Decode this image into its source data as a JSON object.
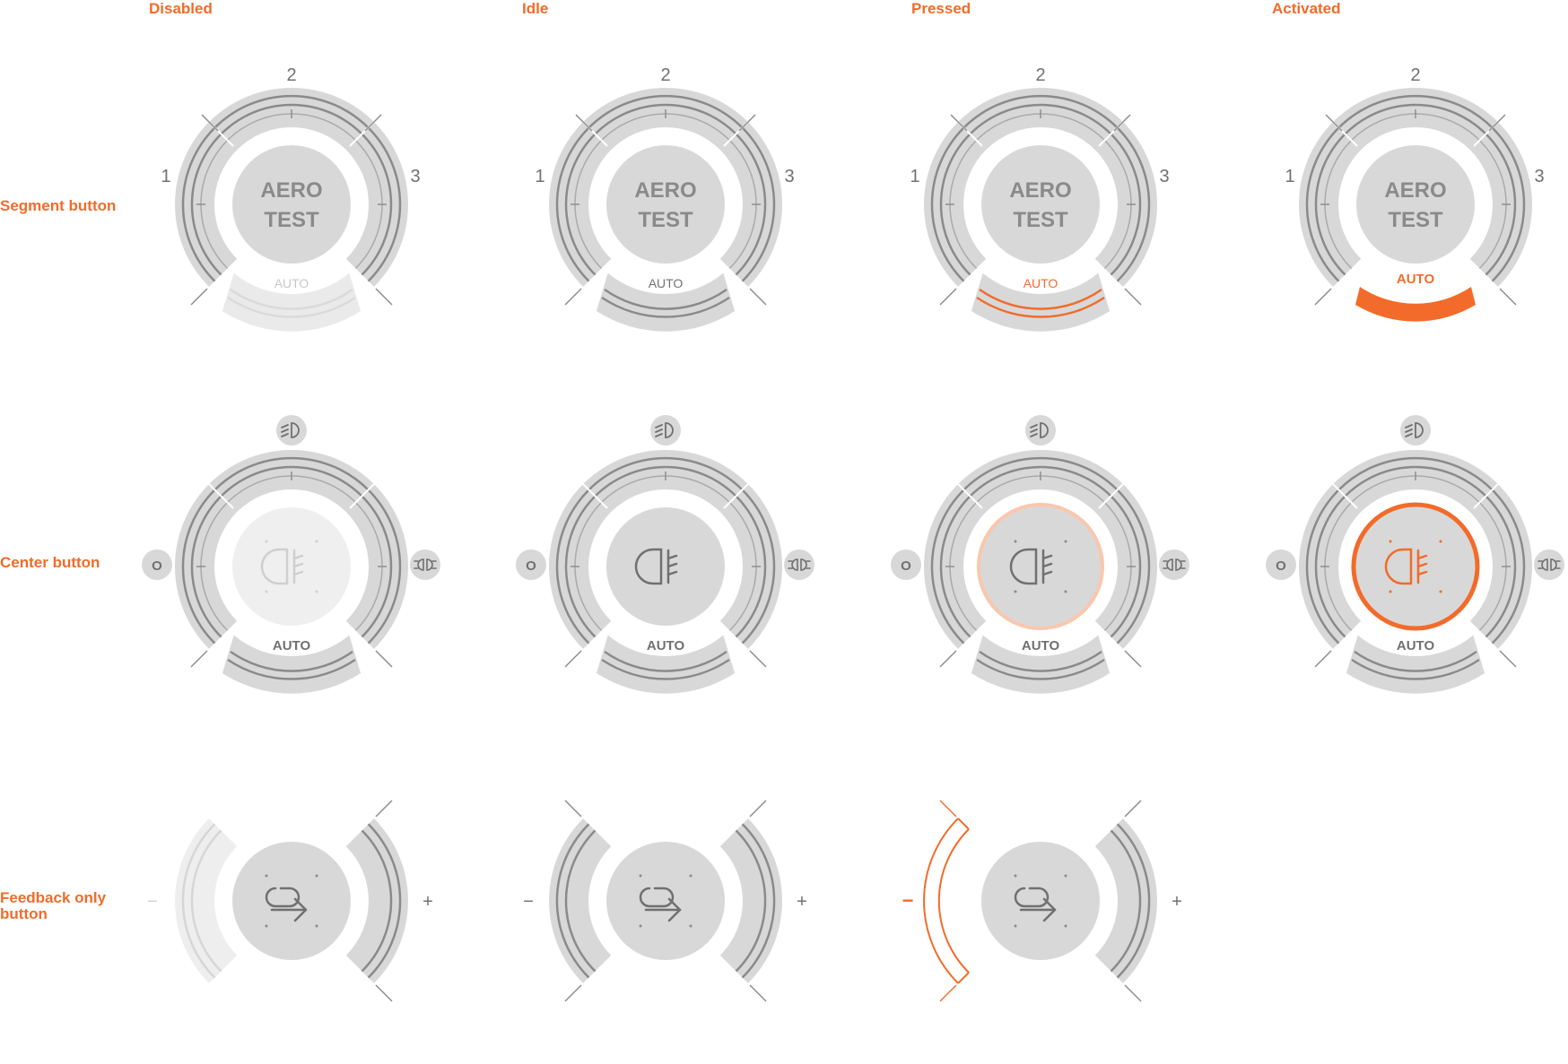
{
  "columns": [
    "Disabled",
    "Idle",
    "Pressed",
    "Activated"
  ],
  "rows": {
    "segment": "Segment button",
    "center": "Center button",
    "feedback_line1": "Feedback only",
    "feedback_line2": "button"
  },
  "segment_button": {
    "center_line1": "AERO",
    "center_line2": "TEST",
    "labels": [
      "1",
      "2",
      "3"
    ],
    "auto": "AUTO"
  },
  "center_button": {
    "auto": "AUTO",
    "off_label": "O",
    "icons": [
      "high-beam-icon",
      "parking-light-icon",
      "rear-fog-light-icon"
    ]
  },
  "feedback_button": {
    "minus": "−",
    "plus": "+",
    "icon": "return-arrow-icon"
  },
  "colors": {
    "accent": "#f26b2a",
    "track": "#d8d8d8",
    "disabled_track": "#ededed",
    "line": "#8a8a8a",
    "label": "#707070",
    "pressed_ring": "#f9c7ad"
  }
}
